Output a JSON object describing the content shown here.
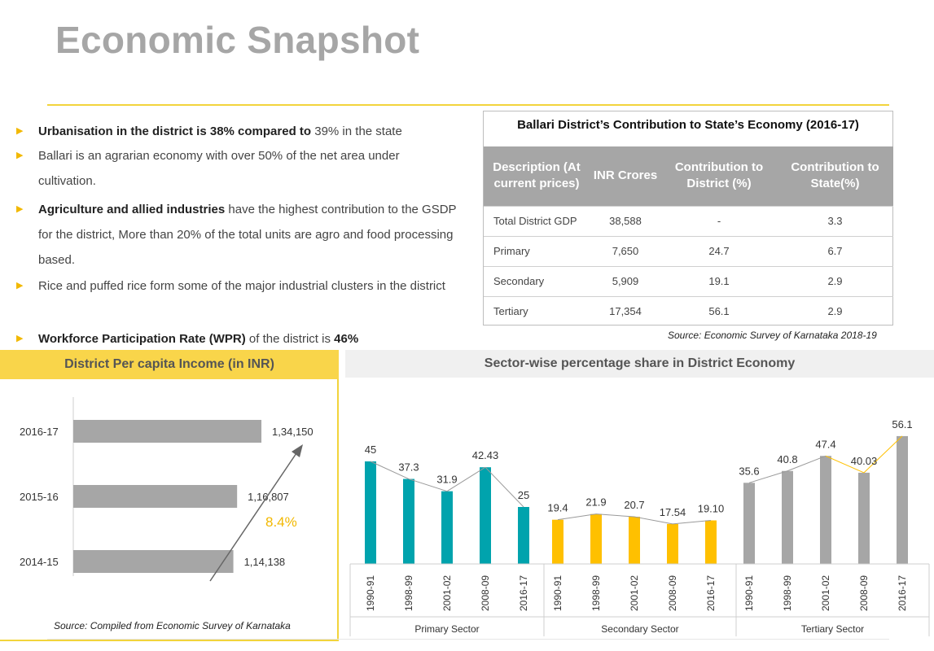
{
  "page": {
    "title": "Economic Snapshot"
  },
  "bullets": {
    "b1": {
      "bold": "Urbanisation in the district is 38% compared to",
      "rest": " 39%  in the state"
    },
    "b2": {
      "text": "Ballari is an agrarian economy with over 50% of the net area under cultivation."
    },
    "b3": {
      "bold": "Agriculture and allied industries",
      "rest": " have the highest contribution to the GSDP for the district, More than 20% of the total units are agro and food processing based."
    },
    "b4": {
      "text": "Rice and puffed rice form some of the major industrial clusters in the district"
    },
    "b5": {
      "bold": "Workforce Participation Rate (WPR)",
      "rest": " of the district is ",
      "bold2": "46%"
    }
  },
  "table": {
    "title": "Ballari District’s Contribution to State’s Economy (2016-17)",
    "headers": [
      "Description (At current prices)",
      "INR Crores",
      "Contribution to District  (%)",
      "Contribution to State(%)"
    ],
    "rows": [
      [
        "Total District GDP",
        "38,588",
        "-",
        "3.3"
      ],
      [
        "Primary",
        "7,650",
        "24.7",
        "6.7"
      ],
      [
        "Secondary",
        "5,909",
        "19.1",
        "2.9"
      ],
      [
        "Tertiary",
        "17,354",
        "56.1",
        "2.9"
      ]
    ],
    "source": "Source: Economic Survey of Karnataka 2018-19"
  },
  "pci_panel": {
    "title": "District Per capita Income (in INR)",
    "source": "Source: Compiled from Economic Survey of Karnataka",
    "growth_label": "8.4%"
  },
  "sector_panel": {
    "title": "Sector-wise percentage share in District Economy"
  },
  "colors": {
    "accent": "#f2d43c",
    "primary": "#00a3ad",
    "secondary": "#ffc000",
    "tertiary": "#a6a6a6",
    "pci_bar": "#a6a6a6"
  },
  "chart_data": [
    {
      "type": "bar",
      "orientation": "horizontal",
      "title": "District Per capita Income (in INR)",
      "categories": [
        "2016-17",
        "2015-16",
        "2014-15"
      ],
      "values": [
        134150,
        116807,
        114138
      ],
      "value_labels": [
        "1,34,150",
        "1,16,807",
        "1,14,138"
      ],
      "xlim": [
        0,
        180000
      ],
      "grid": false,
      "annotation": "8.4%"
    },
    {
      "type": "bar",
      "title": "Sector-wise percentage share in District Economy",
      "groups": [
        {
          "name": "Primary Sector",
          "color": "#00a3ad",
          "x": [
            "1990-91",
            "1998-99",
            "2001-02",
            "2008-09",
            "2016-17"
          ],
          "values": [
            45,
            37.3,
            31.9,
            42.43,
            25
          ],
          "labels": [
            "45",
            "37.3",
            "31.9",
            "42.43",
            "25"
          ]
        },
        {
          "name": "Secondary Sector",
          "color": "#ffc000",
          "x": [
            "1990-91",
            "1998-99",
            "2001-02",
            "2008-09",
            "2016-17"
          ],
          "values": [
            19.4,
            21.9,
            20.7,
            17.54,
            19.1
          ],
          "labels": [
            "19.4",
            "21.9",
            "20.7",
            "17.54",
            "19.10"
          ]
        },
        {
          "name": "Tertiary Sector",
          "color": "#a6a6a6",
          "x": [
            "1990-91",
            "1998-99",
            "2001-02",
            "2008-09",
            "2016-17"
          ],
          "values": [
            35.6,
            40.8,
            47.4,
            40.03,
            56.1
          ],
          "labels": [
            "35.6",
            "40.8",
            "47.4",
            "40.03",
            "56.1"
          ]
        }
      ],
      "ylim": [
        0,
        60
      ],
      "grid": false
    }
  ]
}
